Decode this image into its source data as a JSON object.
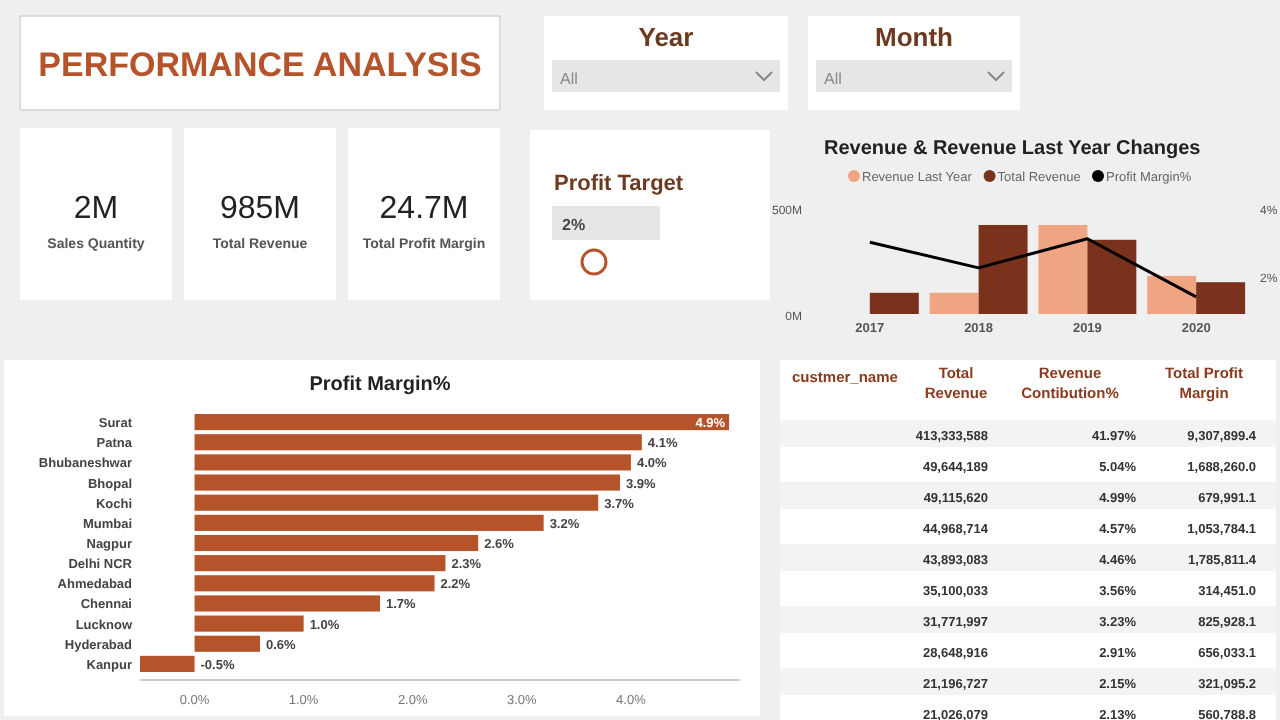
{
  "chart_data": [
    {
      "type": "other",
      "title": "PERFORMANCE ANALYSIS",
      "annotations": [
        "2M",
        "Sales Quantity",
        "985M",
        "Total Revenue",
        "24.7M",
        "Total Profit Margin",
        "Year",
        "All",
        "Month",
        "All",
        "Profit Target",
        "2%"
      ]
    },
    {
      "type": "bar",
      "title": "Revenue & Revenue Last Year Changes",
      "categories": [
        "2017",
        "2018",
        "2019",
        "2020"
      ],
      "series": [
        {
          "name": "Revenue Last Year",
          "color": "#f0a582",
          "values": [
            null,
            100,
            420,
            180
          ]
        },
        {
          "name": "Total Revenue",
          "color": "#7a321c",
          "values": [
            100,
            420,
            350,
            150
          ]
        },
        {
          "name": "Profit Margin%",
          "type": "line",
          "axis": "y2",
          "color": "#000000",
          "values": [
            3.0,
            2.25,
            3.1,
            1.4
          ]
        }
      ],
      "ylim": [
        0,
        500
      ],
      "yticks": [
        {
          "value": 0,
          "label": "0M"
        },
        {
          "value": 500,
          "label": "500M"
        }
      ],
      "y2lim": [
        0.9,
        4
      ],
      "y2ticks": [
        {
          "value": 2,
          "label": "2%"
        },
        {
          "value": 4,
          "label": "4%"
        }
      ],
      "legend": "top left",
      "grid": false
    },
    {
      "type": "bar",
      "orientation": "horizontal",
      "title": "Profit Margin%",
      "categories": [
        "Surat",
        "Patna",
        "Bhubaneshwar",
        "Bhopal",
        "Kochi",
        "Mumbai",
        "Nagpur",
        "Delhi NCR",
        "Ahmedabad",
        "Chennai",
        "Lucknow",
        "Hyderabad",
        "Kanpur"
      ],
      "values": [
        4.9,
        4.1,
        4.0,
        3.9,
        3.7,
        3.2,
        2.6,
        2.3,
        2.2,
        1.7,
        1.0,
        0.6,
        -0.5
      ],
      "color": "#b5532a",
      "value_labels": [
        "4.9%",
        "4.1%",
        "4.0%",
        "3.9%",
        "3.7%",
        "3.2%",
        "2.6%",
        "2.3%",
        "2.2%",
        "1.7%",
        "1.0%",
        "0.6%",
        "-0.5%"
      ],
      "xlim": [
        -0.5,
        5
      ],
      "xticks": [
        {
          "value": 0,
          "label": "0.0%"
        },
        {
          "value": 1,
          "label": "1.0%"
        },
        {
          "value": 2,
          "label": "2.0%"
        },
        {
          "value": 3,
          "label": "3.0%"
        },
        {
          "value": 4,
          "label": "4.0%"
        }
      ]
    },
    {
      "type": "other",
      "categories": [
        "custmer_name",
        "Total Revenue",
        "Revenue Contibution%",
        "Total Profit Margin"
      ],
      "annotations": [
        "413,333,588",
        "41.97%",
        "9,307,899.4",
        "49,644,189",
        "5.04%",
        "1,688,260.0",
        "49,115,620",
        "4.99%",
        "679,991.1",
        "44,968,714",
        "4.57%",
        "1,053,784.1",
        "43,893,083",
        "4.46%",
        "1,785,811.4",
        "35,100,033",
        "3.56%",
        "314,451.0",
        "31,771,997",
        "3.23%",
        "825,928.1",
        "28,648,916",
        "2.91%",
        "656,033.1",
        "21,196,727",
        "2.15%",
        "321,095.2",
        "21,026,079",
        "2.13%",
        "560,788.8"
      ]
    }
  ]
}
